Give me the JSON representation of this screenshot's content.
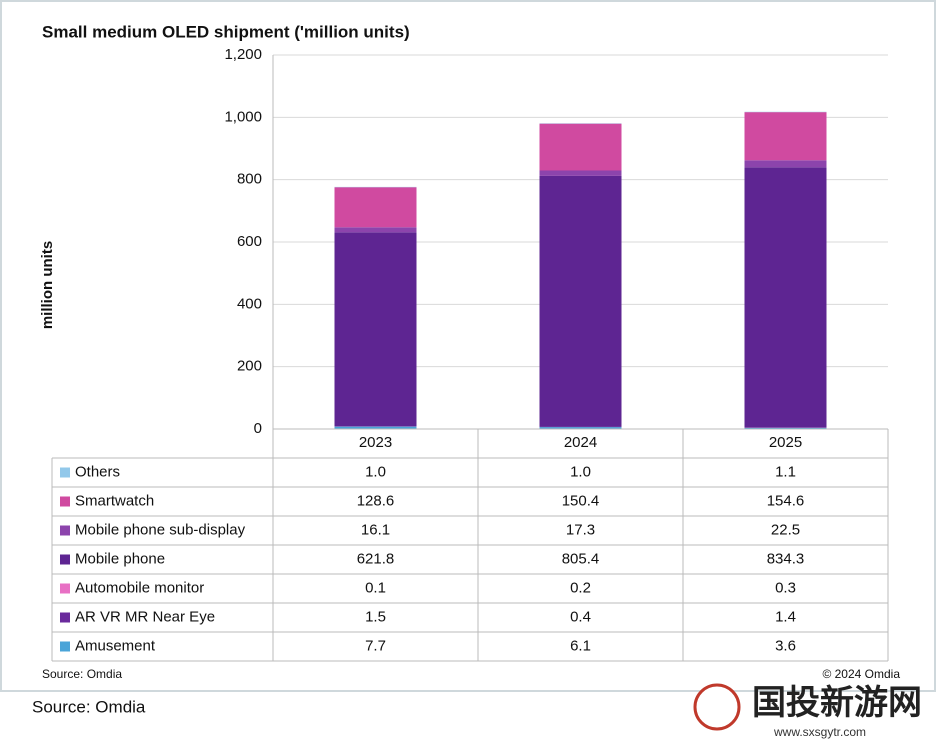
{
  "chart_data": {
    "type": "stacked_bar",
    "title": "Small medium OLED shipment ('million units)",
    "y_label": "million units",
    "categories": [
      "2023",
      "2024",
      "2025"
    ],
    "series": [
      {
        "name": "Others",
        "color": "#92c8ea",
        "values": [
          1.0,
          1.0,
          1.1
        ],
        "value_labels": [
          "1.0",
          "1.0",
          "1.1"
        ]
      },
      {
        "name": "Smartwatch",
        "color": "#d04aa0",
        "values": [
          128.6,
          150.4,
          154.6
        ],
        "value_labels": [
          "128.6",
          "150.4",
          "154.6"
        ]
      },
      {
        "name": "Mobile phone sub-display",
        "color": "#8c44ac",
        "values": [
          16.1,
          17.3,
          22.5
        ],
        "value_labels": [
          "16.1",
          "17.3",
          "22.5"
        ]
      },
      {
        "name": "Mobile phone",
        "color": "#5e2592",
        "values": [
          621.8,
          805.4,
          834.3
        ],
        "value_labels": [
          "621.8",
          "805.4",
          "834.3"
        ]
      },
      {
        "name": "Automobile monitor",
        "color": "#e870c4",
        "values": [
          0.1,
          0.2,
          0.3
        ],
        "value_labels": [
          "0.1",
          "0.2",
          "0.3"
        ]
      },
      {
        "name": "AR VR MR Near Eye",
        "color": "#6a2a9c",
        "values": [
          1.5,
          0.4,
          1.4
        ],
        "value_labels": [
          "1.5",
          "0.4",
          "1.4"
        ]
      },
      {
        "name": "Amusement",
        "color": "#4aa4d8",
        "values": [
          7.7,
          6.1,
          3.6
        ],
        "value_labels": [
          "7.7",
          "6.1",
          "3.6"
        ]
      }
    ],
    "ylim": [
      0,
      1200
    ],
    "yticks": [
      0,
      200,
      400,
      600,
      800,
      {
        "value": 1000,
        "label": "1,000"
      },
      {
        "value": 1200,
        "label": "1,200"
      }
    ],
    "grid": true,
    "source_inner": "Source: Omdia",
    "copyright": "© 2024 Omdia",
    "source_outer": "Source: Omdia",
    "watermark": "国投新游网",
    "watermark_url": "www.sxsgytr.com"
  }
}
